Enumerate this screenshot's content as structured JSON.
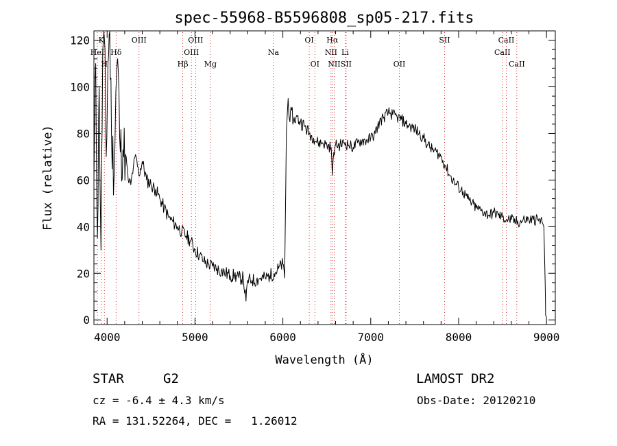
{
  "chart_data": {
    "type": "line",
    "title": "spec-55968-B5596808_sp05-217.fits",
    "xlabel": "Wavelength (Å)",
    "ylabel": "Flux (relative)",
    "xlim": [
      3850,
      9100
    ],
    "ylim": [
      -2,
      124
    ],
    "xticks": [
      4000,
      5000,
      6000,
      7000,
      8000,
      9000
    ],
    "yticks": [
      0,
      20,
      40,
      60,
      80,
      100,
      120
    ],
    "grid": false,
    "line_color": "#000000",
    "marker_color": "#cc0000",
    "series": [
      {
        "x": [
          3850,
          3870,
          3890,
          3910,
          3930,
          3950,
          3970,
          3990,
          4010,
          4030,
          4050,
          4080,
          4100,
          4120,
          4150,
          4180,
          4210,
          4240,
          4270,
          4300,
          4330,
          4360,
          4400,
          4450,
          4500,
          4550,
          4600,
          4650,
          4700,
          4750,
          4800,
          4850,
          4900,
          4950,
          5000,
          5050,
          5100,
          5150,
          5200,
          5250,
          5300,
          5350,
          5400,
          5450,
          5500,
          5550,
          5580,
          5600,
          5650,
          5700,
          5750,
          5800,
          5850,
          5900,
          5950,
          6000,
          6020,
          6040,
          6060,
          6080,
          6100,
          6120,
          6150,
          6200,
          6250,
          6300,
          6350,
          6400,
          6450,
          6500,
          6550,
          6563,
          6580,
          6600,
          6650,
          6700,
          6750,
          6800,
          6850,
          6900,
          6950,
          7000,
          7050,
          7100,
          7150,
          7200,
          7250,
          7300,
          7350,
          7400,
          7450,
          7500,
          7550,
          7600,
          7650,
          7700,
          7750,
          7800,
          7850,
          7900,
          7950,
          8000,
          8050,
          8100,
          8150,
          8200,
          8250,
          8300,
          8350,
          8400,
          8450,
          8500,
          8550,
          8600,
          8650,
          8700,
          8750,
          8800,
          8850,
          8900,
          8950,
          8970,
          8985,
          8990,
          9000
        ],
        "y": [
          60,
          110,
          35,
          100,
          30,
          115,
          120,
          70,
          110,
          125,
          80,
          62,
          98,
          112,
          72,
          73,
          71,
          60,
          58,
          66,
          70,
          62,
          68,
          60,
          58,
          56,
          52,
          48,
          44,
          42,
          40,
          38,
          36,
          34,
          30,
          28,
          25,
          24,
          23,
          22,
          21,
          20,
          19,
          19,
          18,
          18,
          8,
          17,
          17,
          17,
          18,
          18,
          19,
          20,
          22,
          24,
          18,
          80,
          95,
          85,
          90,
          85,
          87,
          85,
          83,
          80,
          78,
          76,
          76,
          75,
          74,
          62,
          72,
          75,
          75,
          76,
          75,
          74,
          76,
          77,
          77,
          78,
          80,
          85,
          87,
          89,
          88,
          87,
          86,
          84,
          83,
          82,
          80,
          78,
          75,
          73,
          72,
          70,
          66,
          62,
          59,
          57,
          55,
          52,
          50,
          48,
          47,
          46,
          45,
          46,
          45,
          44,
          43,
          43,
          42,
          42,
          43,
          43,
          43,
          43,
          42,
          40,
          15,
          2,
          1
        ]
      }
    ],
    "lines": [
      {
        "label": "K",
        "wave": 3934,
        "row": 1
      },
      {
        "label": "HeI",
        "wave": 3889,
        "row": 2
      },
      {
        "label": "H",
        "wave": 3969,
        "row": 3
      },
      {
        "label": "Hδ",
        "wave": 4102,
        "row": 2
      },
      {
        "label": "OIII",
        "wave": 4363,
        "row": 1
      },
      {
        "label": "Hβ",
        "wave": 4861,
        "row": 3
      },
      {
        "label": "OIII",
        "wave": 4959,
        "row": 2
      },
      {
        "label": "OIII",
        "wave": 5007,
        "row": 1
      },
      {
        "label": "Mg",
        "wave": 5175,
        "row": 3
      },
      {
        "label": "Na",
        "wave": 5893,
        "row": 2
      },
      {
        "label": "OI",
        "wave": 6300,
        "row": 1
      },
      {
        "label": "OI",
        "wave": 6364,
        "row": 3
      },
      {
        "label": "Hα",
        "wave": 6563,
        "row": 1
      },
      {
        "label": "NII",
        "wave": 6548,
        "row": 2
      },
      {
        "label": "NII",
        "wave": 6584,
        "row": 3
      },
      {
        "label": "SII",
        "wave": 6720,
        "row": 3
      },
      {
        "label": "Li",
        "wave": 6708,
        "row": 2
      },
      {
        "label": "OII",
        "wave": 7325,
        "row": 3
      },
      {
        "label": "SII",
        "wave": 7840,
        "row": 1
      },
      {
        "label": "CaII",
        "wave": 8498,
        "row": 2
      },
      {
        "label": "CaII",
        "wave": 8542,
        "row": 1
      },
      {
        "label": "CaII",
        "wave": 8662,
        "row": 3
      }
    ]
  },
  "info": {
    "object_class": "STAR",
    "subclass": "G2",
    "survey": "LAMOST DR2",
    "redshift": "cz = -6.4 ± 4.3 km/s",
    "obs_date": "Obs-Date: 20120210",
    "coordinates": "RA = 131.52264, DEC =   1.26012"
  }
}
